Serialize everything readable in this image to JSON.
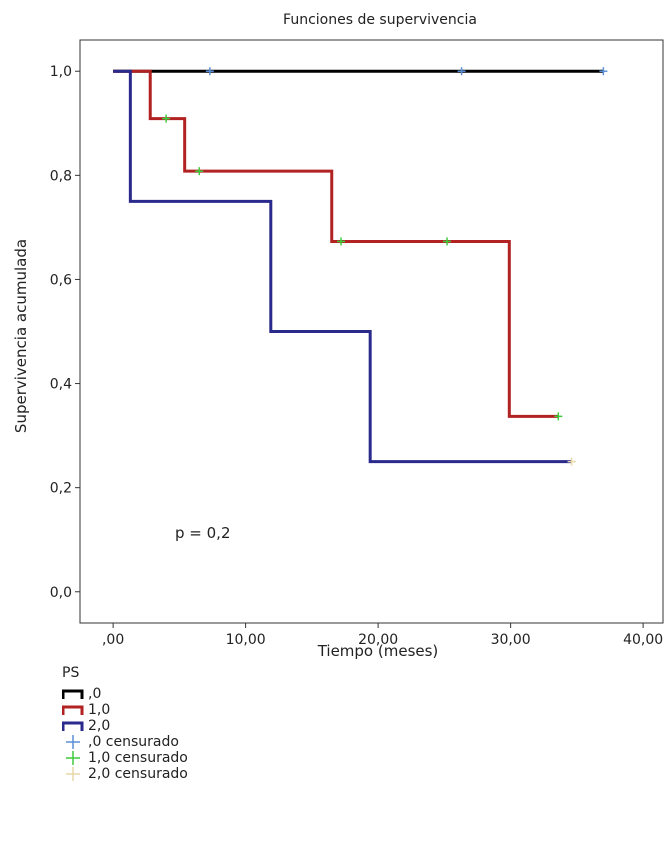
{
  "chart_data": {
    "type": "line",
    "step": true,
    "title": "Funciones de supervivencia",
    "xlabel": "Tiempo (meses)",
    "ylabel": "Supervivencia acumulada",
    "xlim": [
      -2.5,
      41.5
    ],
    "ylim": [
      -0.06,
      1.06
    ],
    "xticks": [
      0,
      10,
      20,
      30,
      40
    ],
    "xtick_labels": [
      ",00",
      "10,00",
      "20,00",
      "30,00",
      "40,00"
    ],
    "yticks": [
      0,
      0.2,
      0.4,
      0.6,
      0.8,
      1.0
    ],
    "ytick_labels": [
      "0,0",
      "0,2",
      "0,4",
      "0,6",
      "0,8",
      "1,0"
    ],
    "grid": false,
    "legend_position": "bottom-left",
    "annotation": "p = 0,2",
    "legend": {
      "title": "PS",
      "entries": [
        {
          "label": ",0",
          "color": "#000000",
          "kind": "line"
        },
        {
          "label": "1,0",
          "color": "#b22222",
          "kind": "line"
        },
        {
          "label": "2,0",
          "color": "#2a2a8c",
          "kind": "line"
        },
        {
          "label": ",0 censurado",
          "color": "#5b8fd6",
          "kind": "censor"
        },
        {
          "label": "1,0 censurado",
          "color": "#3ecb3e",
          "kind": "censor"
        },
        {
          "label": "2,0 censurado",
          "color": "#e8d8a8",
          "kind": "censor"
        }
      ]
    },
    "series": [
      {
        "name": ",0",
        "color": "#000000",
        "steps": [
          [
            0,
            1.0
          ],
          [
            37.0,
            1.0
          ]
        ],
        "censored": [
          [
            7.3,
            1.0
          ],
          [
            26.3,
            1.0
          ],
          [
            37.0,
            1.0
          ]
        ],
        "censor_color": "#5b8fd6"
      },
      {
        "name": "1,0",
        "color": "#b22222",
        "steps": [
          [
            0,
            1.0
          ],
          [
            2.8,
            0.909
          ],
          [
            5.4,
            0.808
          ],
          [
            16.5,
            0.673
          ],
          [
            29.9,
            0.337
          ],
          [
            33.6,
            0.337
          ]
        ],
        "censored": [
          [
            4.0,
            0.909
          ],
          [
            6.5,
            0.808
          ],
          [
            17.2,
            0.673
          ],
          [
            25.2,
            0.673
          ],
          [
            33.6,
            0.337
          ]
        ],
        "censor_color": "#3ecb3e"
      },
      {
        "name": "2,0",
        "color": "#2a2a8c",
        "steps": [
          [
            0,
            1.0
          ],
          [
            1.3,
            0.75
          ],
          [
            11.9,
            0.5
          ],
          [
            19.4,
            0.25
          ],
          [
            34.6,
            0.25
          ]
        ],
        "censored": [
          [
            34.6,
            0.25
          ]
        ],
        "censor_color": "#e8d8a8"
      }
    ]
  }
}
